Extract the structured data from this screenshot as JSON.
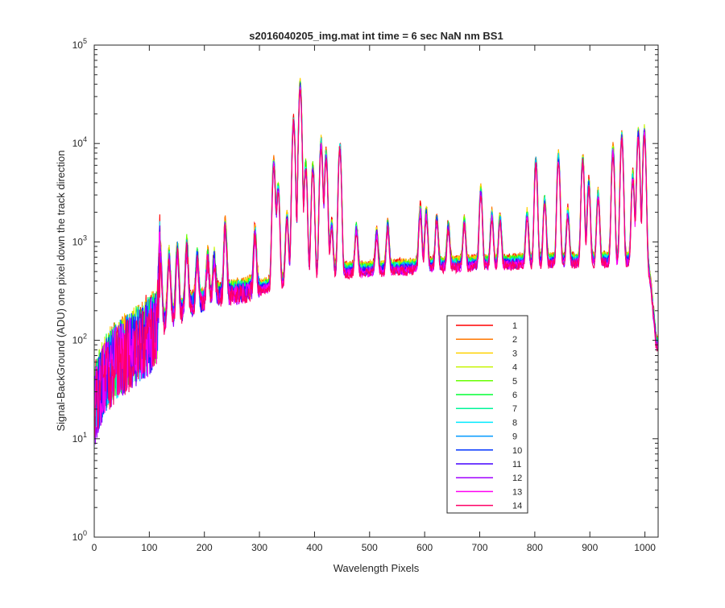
{
  "chart_data": {
    "type": "line",
    "title": "s2016040205_img.mat int time = 6 sec  NaN nm BS1",
    "xlabel": "Wavelength Pixels",
    "ylabel": "Signal-BackGround (ADU) one pixel down the track direction",
    "xlim": [
      0,
      1024
    ],
    "ylim": [
      1,
      100000
    ],
    "yscale": "log",
    "x_ticks": [
      0,
      100,
      200,
      300,
      400,
      500,
      600,
      700,
      800,
      900,
      1000
    ],
    "x_tick_labels": [
      "0",
      "100",
      "200",
      "300",
      "400",
      "500",
      "600",
      "700",
      "800",
      "900",
      "1000"
    ],
    "y_ticks": [
      {
        "value": 1,
        "base": "10",
        "exp": "0"
      },
      {
        "value": 10,
        "base": "10",
        "exp": "1"
      },
      {
        "value": 100,
        "base": "10",
        "exp": "2"
      },
      {
        "value": 1000,
        "base": "10",
        "exp": "3"
      },
      {
        "value": 10000,
        "base": "10",
        "exp": "4"
      },
      {
        "value": 100000,
        "base": "10",
        "exp": "5"
      }
    ],
    "grid": false,
    "legend_position": "lower-right",
    "baseline": [
      [
        0,
        20
      ],
      [
        20,
        45
      ],
      [
        40,
        62
      ],
      [
        60,
        75
      ],
      [
        80,
        90
      ],
      [
        100,
        115
      ],
      [
        120,
        145
      ],
      [
        150,
        190
      ],
      [
        180,
        235
      ],
      [
        210,
        270
      ],
      [
        240,
        300
      ],
      [
        270,
        320
      ],
      [
        300,
        345
      ],
      [
        330,
        380
      ],
      [
        360,
        420
      ],
      [
        400,
        480
      ],
      [
        450,
        520
      ],
      [
        500,
        530
      ],
      [
        550,
        550
      ],
      [
        600,
        575
      ],
      [
        650,
        595
      ],
      [
        700,
        610
      ],
      [
        750,
        625
      ],
      [
        800,
        640
      ],
      [
        850,
        650
      ],
      [
        900,
        660
      ],
      [
        950,
        665
      ],
      [
        1000,
        660
      ],
      [
        1005,
        600
      ],
      [
        1010,
        400
      ],
      [
        1015,
        200
      ],
      [
        1020,
        100
      ],
      [
        1024,
        90
      ]
    ],
    "peaks": [
      [
        120,
        620
      ],
      [
        136,
        530
      ],
      [
        151,
        610
      ],
      [
        168,
        680
      ],
      [
        187,
        450
      ],
      [
        206,
        410
      ],
      [
        218,
        380
      ],
      [
        238,
        1120
      ],
      [
        292,
        850
      ],
      [
        326,
        6000
      ],
      [
        334,
        3200
      ],
      [
        350,
        1400
      ],
      [
        362,
        17000
      ],
      [
        374,
        38000
      ],
      [
        384,
        5500
      ],
      [
        397,
        5200
      ],
      [
        412,
        9800
      ],
      [
        421,
        7200
      ],
      [
        431,
        1000
      ],
      [
        446,
        8800
      ],
      [
        476,
        850
      ],
      [
        513,
        700
      ],
      [
        533,
        920
      ],
      [
        592,
        1550
      ],
      [
        603,
        1400
      ],
      [
        622,
        1150
      ],
      [
        643,
        850
      ],
      [
        672,
        1000
      ],
      [
        702,
        2700
      ],
      [
        722,
        1250
      ],
      [
        737,
        1150
      ],
      [
        786,
        1250
      ],
      [
        802,
        6000
      ],
      [
        818,
        2000
      ],
      [
        843,
        6500
      ],
      [
        860,
        1350
      ],
      [
        887,
        6300
      ],
      [
        898,
        3200
      ],
      [
        915,
        2300
      ],
      [
        942,
        8000
      ],
      [
        958,
        11000
      ],
      [
        978,
        4000
      ],
      [
        988,
        12000
      ],
      [
        999,
        12500
      ]
    ],
    "series": [
      {
        "name": "1",
        "color": "#ff0000"
      },
      {
        "name": "2",
        "color": "#ff7700"
      },
      {
        "name": "3",
        "color": "#ffd200"
      },
      {
        "name": "4",
        "color": "#c6f500"
      },
      {
        "name": "5",
        "color": "#66ff00"
      },
      {
        "name": "6",
        "color": "#00ff33"
      },
      {
        "name": "7",
        "color": "#00f59a"
      },
      {
        "name": "8",
        "color": "#00eaff"
      },
      {
        "name": "9",
        "color": "#0099ff"
      },
      {
        "name": "10",
        "color": "#0033ff"
      },
      {
        "name": "11",
        "color": "#4400ff"
      },
      {
        "name": "12",
        "color": "#a000ff"
      },
      {
        "name": "13",
        "color": "#ff00f2"
      },
      {
        "name": "14",
        "color": "#ff0066"
      }
    ]
  }
}
